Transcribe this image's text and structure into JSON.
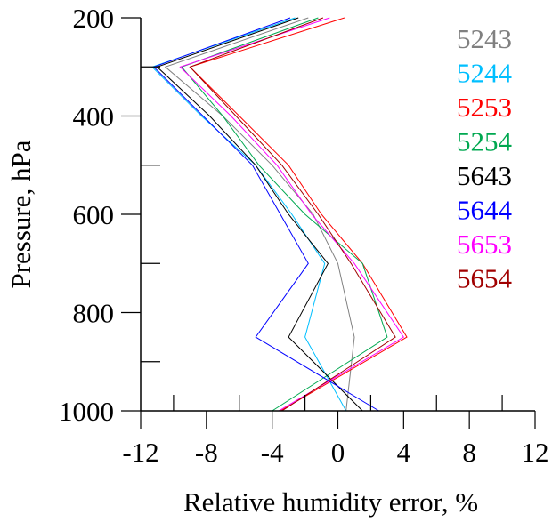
{
  "chart_data": {
    "type": "line",
    "title": "",
    "xlabel": "Relative humidity error, %",
    "ylabel": "Pressure, hPa",
    "xlim": [
      -12,
      12
    ],
    "ylim": [
      1000,
      200
    ],
    "y_inverted": true,
    "x_ticks": [
      -12,
      -8,
      -4,
      0,
      4,
      8,
      12
    ],
    "x_tick_labels": [
      "-12",
      "-8",
      "-4",
      "0",
      "4",
      "8",
      "12"
    ],
    "y_ticks": [
      200,
      400,
      600,
      800,
      1000
    ],
    "y_tick_labels": [
      "200",
      "400",
      "600",
      "800",
      "1000"
    ],
    "grid": false,
    "legend_position": "top-right",
    "series": [
      {
        "name": "5243",
        "color": "#808080",
        "points": [
          [
            -1.8,
            200
          ],
          [
            -10.5,
            300
          ],
          [
            -7.0,
            400
          ],
          [
            -4.0,
            500
          ],
          [
            -1.5,
            600
          ],
          [
            0.0,
            700
          ],
          [
            1.0,
            850
          ],
          [
            0.5,
            1000
          ]
        ]
      },
      {
        "name": "5244",
        "color": "#00BFFF",
        "points": [
          [
            -2.6,
            200
          ],
          [
            -11.3,
            300
          ],
          [
            -8.3,
            400
          ],
          [
            -5.0,
            500
          ],
          [
            -2.8,
            600
          ],
          [
            -0.8,
            700
          ],
          [
            -2.0,
            850
          ],
          [
            0.5,
            1000
          ]
        ]
      },
      {
        "name": "5253",
        "color": "#FF0000",
        "points": [
          [
            0.4,
            200
          ],
          [
            -9.0,
            300
          ],
          [
            -6.0,
            400
          ],
          [
            -3.0,
            500
          ],
          [
            -1.0,
            600
          ],
          [
            1.5,
            700
          ],
          [
            4.2,
            850
          ],
          [
            -3.5,
            1000
          ]
        ]
      },
      {
        "name": "5254",
        "color": "#00A850",
        "points": [
          [
            -1.2,
            200
          ],
          [
            -9.5,
            300
          ],
          [
            -7.0,
            400
          ],
          [
            -4.8,
            500
          ],
          [
            -2.0,
            600
          ],
          [
            1.5,
            700
          ],
          [
            3.0,
            850
          ],
          [
            -4.0,
            1000
          ]
        ]
      },
      {
        "name": "5643",
        "color": "#000000",
        "points": [
          [
            -2.4,
            200
          ],
          [
            -11.0,
            300
          ],
          [
            -7.8,
            400
          ],
          [
            -5.0,
            500
          ],
          [
            -3.0,
            600
          ],
          [
            -0.6,
            700
          ],
          [
            -3.0,
            850
          ],
          [
            1.5,
            1000
          ]
        ]
      },
      {
        "name": "5644",
        "color": "#0000FF",
        "points": [
          [
            -2.9,
            200
          ],
          [
            -11.2,
            300
          ],
          [
            -8.2,
            400
          ],
          [
            -5.2,
            500
          ],
          [
            -3.5,
            600
          ],
          [
            -1.8,
            700
          ],
          [
            -5.0,
            850
          ],
          [
            2.5,
            1000
          ]
        ]
      },
      {
        "name": "5653",
        "color": "#FF00FF",
        "points": [
          [
            -0.5,
            200
          ],
          [
            -9.6,
            300
          ],
          [
            -6.5,
            400
          ],
          [
            -3.7,
            500
          ],
          [
            -1.6,
            600
          ],
          [
            1.0,
            700
          ],
          [
            4.0,
            850
          ],
          [
            -3.6,
            1000
          ]
        ]
      },
      {
        "name": "5654",
        "color": "#A00000",
        "points": [
          [
            -0.9,
            200
          ],
          [
            -9.0,
            300
          ],
          [
            -6.2,
            400
          ],
          [
            -3.4,
            500
          ],
          [
            -1.2,
            600
          ],
          [
            0.8,
            700
          ],
          [
            3.5,
            850
          ],
          [
            -3.4,
            1000
          ]
        ]
      }
    ]
  }
}
